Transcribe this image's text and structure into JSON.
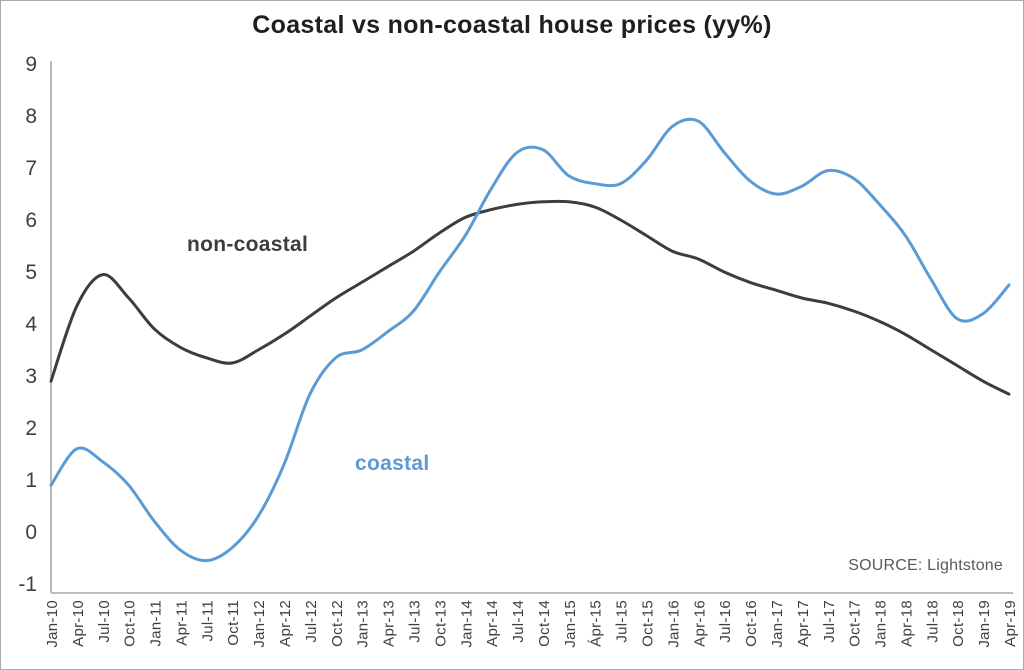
{
  "chart_data": {
    "type": "line",
    "title": "Coastal vs non-coastal house prices (yy%)",
    "source": "SOURCE: Lightstone",
    "xlabel": "",
    "ylabel": "",
    "ylim": [
      -1,
      9
    ],
    "yticks": [
      9,
      8,
      7,
      6,
      5,
      4,
      3,
      2,
      1,
      0,
      -1
    ],
    "grid": false,
    "legend_position": "inline-annotations",
    "categories": [
      "Jan-10",
      "Apr-10",
      "Jul-10",
      "Oct-10",
      "Jan-11",
      "Apr-11",
      "Jul-11",
      "Oct-11",
      "Jan-12",
      "Apr-12",
      "Jul-12",
      "Oct-12",
      "Jan-13",
      "Apr-13",
      "Jul-13",
      "Oct-13",
      "Jan-14",
      "Apr-14",
      "Jul-14",
      "Oct-14",
      "Jan-15",
      "Ápr-15",
      "Jul-15",
      "Oct-15",
      "Jan-16",
      "Apr-16",
      "Jul-16",
      "Oct-16",
      "Jan-17",
      "Apr-17",
      "Jul-17",
      "Oct-17",
      "Jan-18",
      "Apr-18",
      "Jul-18",
      "Oct-18",
      "Jan-19",
      "Apr-19"
    ],
    "series": [
      {
        "name": "non-coastal",
        "label": "non-coastal",
        "color": "#3d3d3d",
        "values": [
          2.9,
          4.35,
          4.95,
          4.5,
          3.9,
          3.55,
          3.35,
          3.25,
          3.5,
          3.8,
          4.15,
          4.5,
          4.8,
          5.1,
          5.4,
          5.75,
          6.05,
          6.2,
          6.3,
          6.35,
          6.35,
          6.25,
          6.0,
          5.7,
          5.4,
          5.25,
          5.0,
          4.8,
          4.65,
          4.5,
          4.4,
          4.25,
          4.05,
          3.8,
          3.5,
          3.2,
          2.9,
          2.65
        ]
      },
      {
        "name": "coastal",
        "label": "coastal",
        "color": "#5b9bd5",
        "values": [
          0.9,
          1.6,
          1.35,
          0.9,
          0.2,
          -0.35,
          -0.55,
          -0.3,
          0.3,
          1.3,
          2.65,
          3.35,
          3.5,
          3.85,
          4.25,
          5.0,
          5.7,
          6.6,
          7.3,
          7.35,
          6.85,
          6.7,
          6.7,
          7.15,
          7.8,
          7.9,
          7.3,
          6.75,
          6.5,
          6.65,
          6.95,
          6.8,
          6.3,
          5.7,
          4.85,
          4.1,
          4.2,
          4.75
        ]
      }
    ],
    "axis_color": "#b3b3b3",
    "tick_label_color": "#3f3f3f"
  }
}
